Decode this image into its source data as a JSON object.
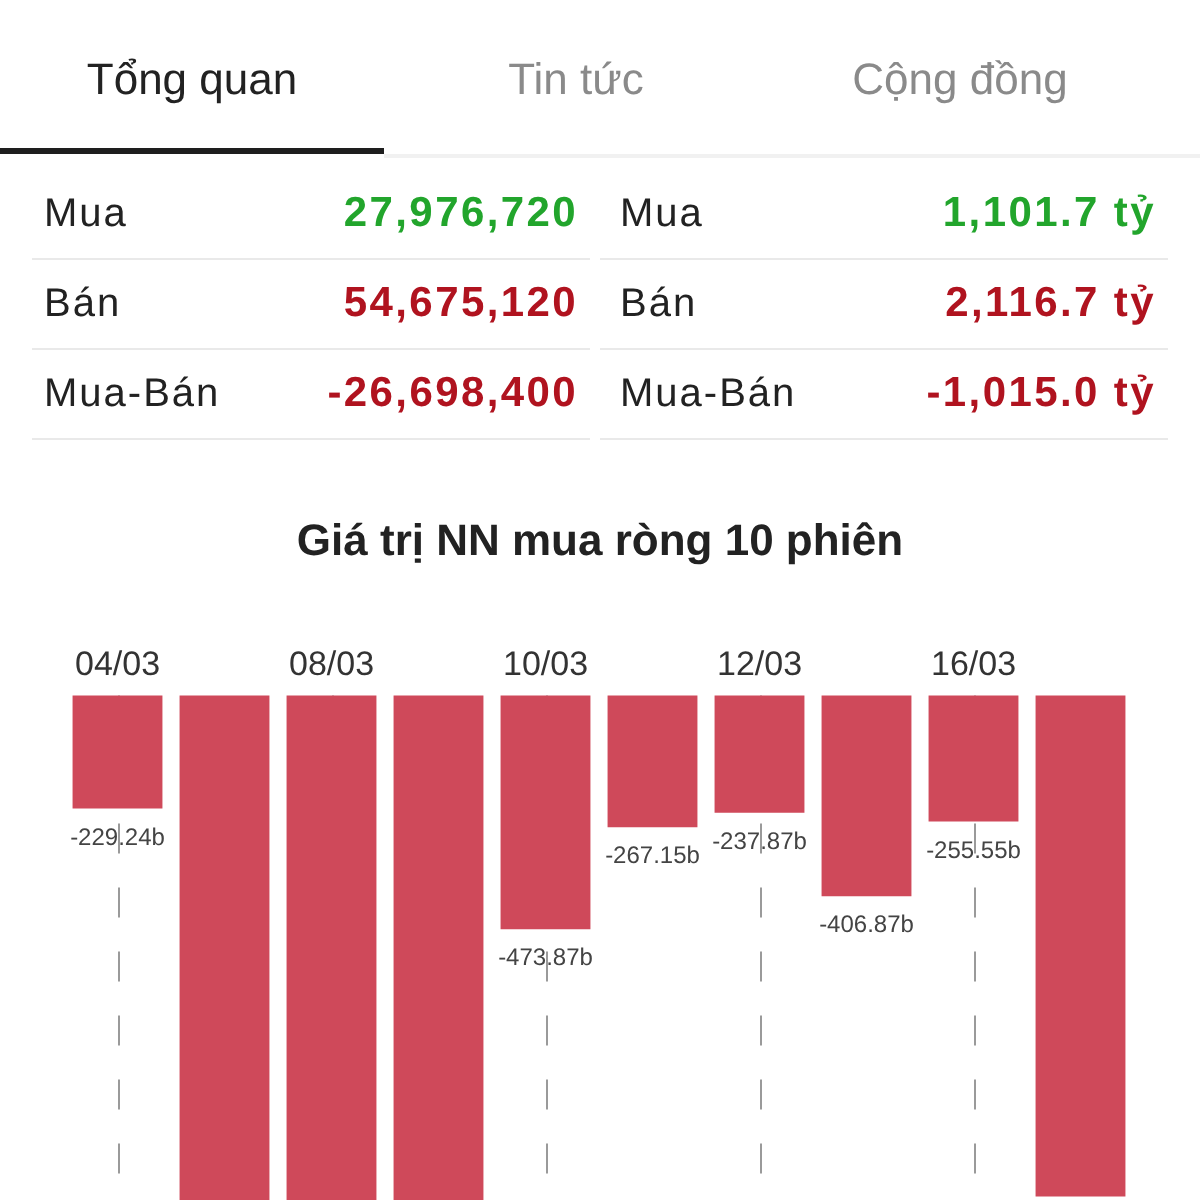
{
  "chart_data": [
    {
      "type": "other",
      "annotations": [
        "Tổng quan",
        "Tin tức",
        "Cộng đồng",
        "27,976,720",
        "1,101.7 tỷ",
        "54,675,120",
        "2,116.7 tỷ",
        "-26,698,400",
        "-1,015.0 tỷ"
      ],
      "categories": [
        "Mua",
        "Bán",
        "Mua-Bán"
      ]
    },
    {
      "type": "bar",
      "title": "Giá trị NN mua ròng 10 phiên",
      "categories": [
        "04/03",
        null,
        "08/03",
        null,
        "10/03",
        null,
        "12/03",
        null,
        "16/03",
        null
      ],
      "values": [
        -229.24,
        -1022,
        -1022,
        -1022,
        -473.87,
        -267.15,
        -237.87,
        -406.87,
        -255.55,
        -1015
      ],
      "value_labels": [
        "-229.24b",
        null,
        null,
        null,
        "-473.87b",
        "-267.15b",
        "-237.87b",
        "-406.87b",
        "-255.55b",
        null
      ],
      "color": "#cf495a",
      "grid": "x",
      "tick_labels": "x"
    }
  ]
}
